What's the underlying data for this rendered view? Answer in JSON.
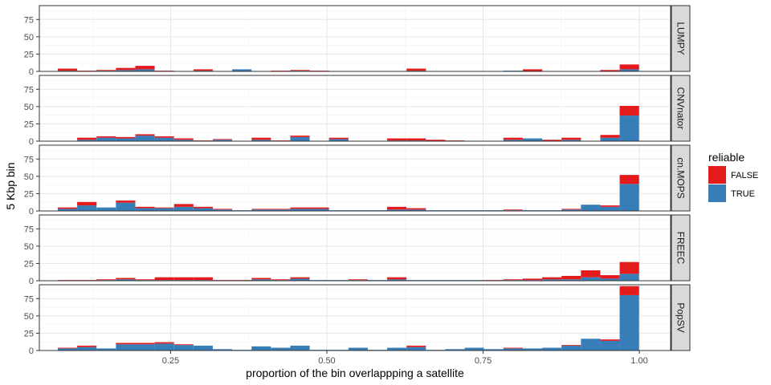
{
  "chart_data": {
    "type": "bar",
    "stacked": true,
    "facet_layout": "vertical",
    "xlabel": "proportion of the bin overlappping a satellite",
    "ylabel": "5 Kbp bin",
    "xlim": [
      0.04,
      1.05
    ],
    "ylim": [
      0,
      95
    ],
    "x_ticks": [
      0.25,
      0.5,
      0.75,
      1.0
    ],
    "x_tick_labels": [
      "0.25",
      "0.50",
      "0.75",
      "1.00"
    ],
    "y_ticks": [
      0,
      25,
      50,
      75
    ],
    "y_tick_labels": [
      "0",
      "25",
      "50",
      "75"
    ],
    "bin_width": 0.031,
    "grid": true,
    "legend_position": "right",
    "legend": {
      "title": "reliable",
      "entries": [
        {
          "label": "FALSE",
          "color": "#E41A1C"
        },
        {
          "label": "TRUE",
          "color": "#377EB8"
        }
      ]
    },
    "panels": [
      {
        "name": "LUMPY",
        "x": [
          0.085,
          0.116,
          0.147,
          0.178,
          0.209,
          0.24,
          0.302,
          0.364,
          0.426,
          0.457,
          0.488,
          0.643,
          0.798,
          0.829,
          0.953,
          0.984
        ],
        "true": [
          1,
          0,
          1,
          2,
          3,
          0,
          1,
          3,
          0,
          1,
          0,
          1,
          1,
          0,
          0,
          3
        ],
        "false": [
          3,
          1,
          1,
          3,
          5,
          1,
          2,
          0,
          1,
          1,
          1,
          3,
          0,
          3,
          2,
          7
        ]
      },
      {
        "name": "CNVnator",
        "x": [
          0.116,
          0.147,
          0.178,
          0.209,
          0.24,
          0.271,
          0.302,
          0.333,
          0.395,
          0.426,
          0.457,
          0.519,
          0.612,
          0.643,
          0.674,
          0.705,
          0.798,
          0.829,
          0.86,
          0.891,
          0.922,
          0.953,
          0.984
        ],
        "true": [
          2,
          5,
          4,
          8,
          5,
          2,
          0,
          2,
          2,
          0,
          6,
          3,
          1,
          1,
          0,
          0,
          2,
          4,
          0,
          2,
          0,
          5,
          37
        ],
        "false": [
          3,
          2,
          2,
          2,
          2,
          2,
          1,
          1,
          3,
          1,
          2,
          2,
          3,
          3,
          2,
          1,
          3,
          0,
          2,
          3,
          0,
          4,
          14
        ]
      },
      {
        "name": "cn.MOPS",
        "x": [
          0.085,
          0.116,
          0.147,
          0.178,
          0.209,
          0.24,
          0.271,
          0.302,
          0.333,
          0.364,
          0.395,
          0.426,
          0.457,
          0.488,
          0.519,
          0.55,
          0.581,
          0.612,
          0.643,
          0.674,
          0.705,
          0.736,
          0.767,
          0.798,
          0.829,
          0.86,
          0.891,
          0.922,
          0.953,
          0.984
        ],
        "true": [
          3,
          8,
          5,
          12,
          4,
          4,
          6,
          4,
          2,
          1,
          2,
          2,
          3,
          3,
          1,
          1,
          1,
          2,
          2,
          1,
          1,
          1,
          1,
          1,
          1,
          1,
          2,
          9,
          6,
          39
        ],
        "false": [
          2,
          5,
          0,
          3,
          2,
          1,
          4,
          2,
          1,
          0,
          1,
          1,
          2,
          2,
          0,
          0,
          0,
          4,
          2,
          0,
          0,
          0,
          0,
          1,
          0,
          0,
          1,
          0,
          2,
          13
        ]
      },
      {
        "name": "FREEC",
        "x": [
          0.085,
          0.116,
          0.147,
          0.178,
          0.209,
          0.24,
          0.271,
          0.302,
          0.333,
          0.364,
          0.395,
          0.426,
          0.457,
          0.488,
          0.519,
          0.55,
          0.581,
          0.612,
          0.643,
          0.674,
          0.705,
          0.736,
          0.767,
          0.798,
          0.829,
          0.86,
          0.891,
          0.922,
          0.953,
          0.984
        ],
        "true": [
          0,
          0,
          1,
          2,
          1,
          1,
          1,
          1,
          0,
          0,
          2,
          1,
          3,
          1,
          1,
          1,
          1,
          2,
          1,
          1,
          1,
          1,
          0,
          1,
          1,
          2,
          2,
          5,
          3,
          10
        ],
        "false": [
          1,
          1,
          1,
          2,
          1,
          4,
          4,
          4,
          1,
          1,
          2,
          1,
          2,
          0,
          0,
          1,
          0,
          3,
          0,
          0,
          0,
          0,
          1,
          1,
          2,
          3,
          5,
          10,
          5,
          17
        ]
      },
      {
        "name": "PopSV",
        "x": [
          0.085,
          0.116,
          0.147,
          0.178,
          0.209,
          0.24,
          0.271,
          0.302,
          0.333,
          0.364,
          0.395,
          0.426,
          0.457,
          0.488,
          0.519,
          0.55,
          0.581,
          0.612,
          0.643,
          0.674,
          0.705,
          0.736,
          0.767,
          0.798,
          0.829,
          0.86,
          0.891,
          0.922,
          0.953,
          0.984
        ],
        "true": [
          3,
          5,
          3,
          9,
          9,
          10,
          8,
          7,
          2,
          1,
          6,
          4,
          7,
          1,
          1,
          4,
          1,
          4,
          5,
          1,
          2,
          4,
          2,
          3,
          3,
          4,
          7,
          17,
          14,
          80
        ],
        "false": [
          1,
          2,
          0,
          2,
          2,
          2,
          1,
          0,
          0,
          0,
          0,
          0,
          0,
          0,
          0,
          0,
          0,
          0,
          2,
          0,
          0,
          0,
          0,
          1,
          0,
          0,
          1,
          0,
          2,
          13
        ]
      }
    ]
  }
}
